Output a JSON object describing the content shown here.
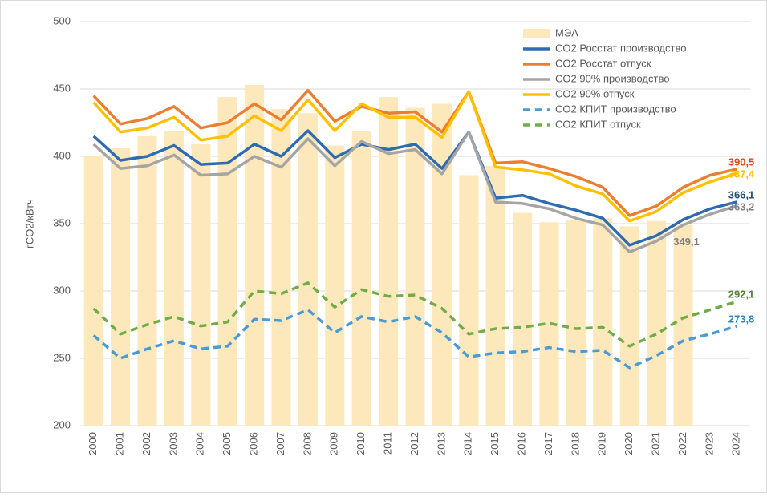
{
  "chart_data": {
    "type": "combo",
    "y_label": "гCO2/кВтч",
    "categories": [
      "2000",
      "2001",
      "2002",
      "2003",
      "2004",
      "2005",
      "2006",
      "2007",
      "2008",
      "2009",
      "2010",
      "2011",
      "2012",
      "2013",
      "2014",
      "2015",
      "2016",
      "2017",
      "2018",
      "2019",
      "2020",
      "2021",
      "2022",
      "2023",
      "2024"
    ],
    "ylim": [
      200,
      500
    ],
    "yticks": [
      200,
      250,
      300,
      350,
      400,
      450,
      500
    ],
    "grid": true,
    "legend": "top-right",
    "series": [
      {
        "name": "МЭА",
        "type": "bar",
        "color": "#fce8bb",
        "label_color": "#7f7f7f",
        "values": [
          400,
          406,
          415,
          419,
          409,
          444,
          453,
          435,
          432,
          408,
          419,
          444,
          436,
          439,
          386,
          393,
          358,
          351,
          353,
          354,
          348,
          352,
          349.1,
          null,
          null
        ],
        "value_labels": [
          null,
          null,
          null,
          null,
          null,
          null,
          null,
          null,
          null,
          null,
          null,
          null,
          null,
          null,
          null,
          null,
          null,
          null,
          null,
          null,
          null,
          null,
          "349,1",
          null,
          null
        ]
      },
      {
        "name": "CO2 Росстат производство",
        "type": "line",
        "color": "#2e6bb0",
        "label_color": "#1f4e79",
        "values": [
          415,
          397,
          400,
          408,
          394,
          395,
          409,
          400,
          419,
          399,
          409,
          405,
          409,
          391,
          418,
          369,
          371,
          365,
          360,
          354,
          334,
          341,
          353,
          361,
          366.1
        ],
        "value_labels": [
          null,
          null,
          null,
          null,
          null,
          null,
          null,
          null,
          null,
          null,
          null,
          null,
          null,
          null,
          null,
          null,
          null,
          null,
          null,
          null,
          null,
          null,
          null,
          null,
          "366,1"
        ]
      },
      {
        "name": "CO2 Росстат отпуск",
        "type": "line",
        "color": "#ed7d31",
        "label_color": "#e2461c",
        "values": [
          445,
          424,
          428,
          437,
          421,
          425,
          439,
          427,
          449,
          426,
          437,
          432,
          433,
          418,
          448,
          395,
          396,
          391,
          385,
          377,
          356,
          363,
          377,
          386,
          390.5
        ],
        "value_labels": [
          null,
          null,
          null,
          null,
          null,
          null,
          null,
          null,
          null,
          null,
          null,
          null,
          null,
          null,
          null,
          null,
          null,
          null,
          null,
          null,
          null,
          null,
          null,
          null,
          "390,5"
        ]
      },
      {
        "name": "CO2 90% производство",
        "type": "line",
        "color": "#a5a5a5",
        "label_color": "#7f7f7f",
        "values": [
          409,
          391,
          393,
          401,
          386,
          387,
          400,
          392,
          413,
          393,
          411,
          402,
          405,
          387,
          418,
          366,
          365,
          361,
          354,
          349,
          329,
          337,
          349,
          357,
          363.2
        ],
        "value_labels": [
          null,
          null,
          null,
          null,
          null,
          null,
          null,
          null,
          null,
          null,
          null,
          null,
          null,
          null,
          null,
          null,
          null,
          null,
          null,
          null,
          null,
          null,
          null,
          null,
          "363,2"
        ]
      },
      {
        "name": "CO2 90% отпуск",
        "type": "line",
        "color": "#ffc000",
        "label_color": "#ffc000",
        "values": [
          440,
          418,
          421,
          429,
          412,
          415,
          430,
          419,
          442,
          419,
          439,
          429,
          429,
          414,
          448,
          392,
          390,
          387,
          378,
          372,
          352,
          359,
          373,
          381,
          387.4
        ],
        "value_labels": [
          null,
          null,
          null,
          null,
          null,
          null,
          null,
          null,
          null,
          null,
          null,
          null,
          null,
          null,
          null,
          null,
          null,
          null,
          null,
          null,
          null,
          null,
          null,
          null,
          "387,4"
        ]
      },
      {
        "name": "CO2 КПИТ производство",
        "type": "line",
        "dashed": true,
        "color": "#4a9ad4",
        "label_color": "#2e86c1",
        "values": [
          267,
          250,
          257,
          263,
          257,
          259,
          279,
          278,
          286,
          269,
          281,
          277,
          281,
          269,
          251,
          254,
          255,
          258,
          255,
          256,
          243,
          252,
          263,
          268,
          273.8
        ],
        "value_labels": [
          null,
          null,
          null,
          null,
          null,
          null,
          null,
          null,
          null,
          null,
          null,
          null,
          null,
          null,
          null,
          null,
          null,
          null,
          null,
          null,
          null,
          null,
          null,
          null,
          "273,8"
        ]
      },
      {
        "name": "CO2 КПИТ отпуск",
        "type": "line",
        "dashed": true,
        "color": "#70ad47",
        "label_color": "#548235",
        "values": [
          287,
          268,
          275,
          281,
          274,
          277,
          300,
          298,
          306,
          288,
          301,
          296,
          297,
          287,
          268,
          272,
          273,
          276,
          272,
          273,
          259,
          268,
          280,
          286,
          292.1
        ],
        "value_labels": [
          null,
          null,
          null,
          null,
          null,
          null,
          null,
          null,
          null,
          null,
          null,
          null,
          null,
          null,
          null,
          null,
          null,
          null,
          null,
          null,
          null,
          null,
          null,
          null,
          "292,1"
        ]
      }
    ]
  }
}
